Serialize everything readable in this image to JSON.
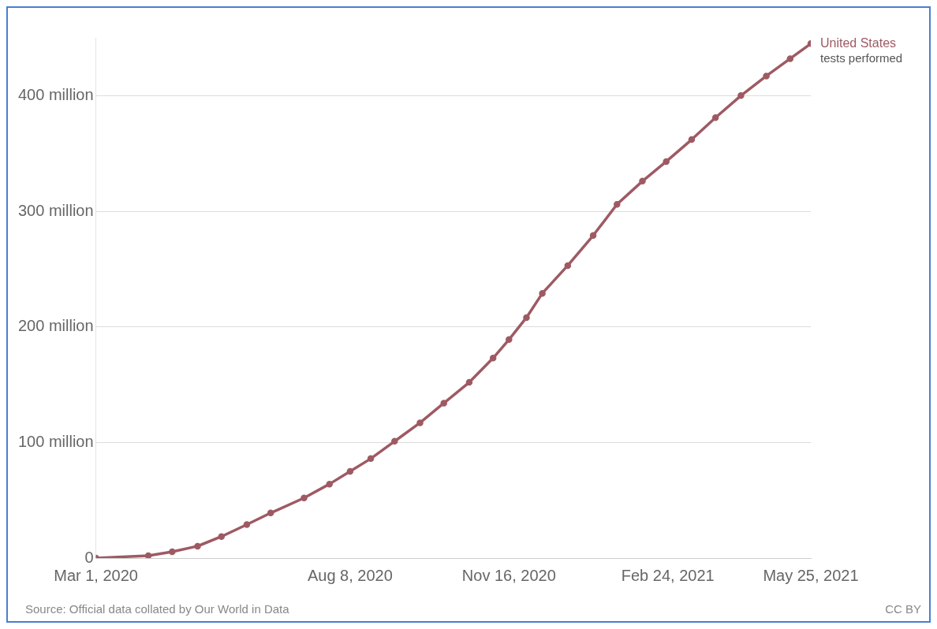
{
  "chart_data": {
    "type": "line",
    "x": [
      "2020-03-01",
      "2020-04-03",
      "2020-04-18",
      "2020-05-04",
      "2020-05-19",
      "2020-06-04",
      "2020-06-19",
      "2020-07-10",
      "2020-07-26",
      "2020-08-08",
      "2020-08-21",
      "2020-09-05",
      "2020-09-21",
      "2020-10-06",
      "2020-10-22",
      "2020-11-06",
      "2020-11-16",
      "2020-11-27",
      "2020-12-07",
      "2020-12-23",
      "2021-01-08",
      "2021-01-23",
      "2021-02-08",
      "2021-02-23",
      "2021-03-11",
      "2021-03-26",
      "2021-04-11",
      "2021-04-27",
      "2021-05-12",
      "2021-05-25"
    ],
    "series": [
      {
        "name": "United States",
        "color": "#9e5a63",
        "values": [
          0,
          2.1,
          5.5,
          10.3,
          18.6,
          29,
          39,
          52,
          64,
          75,
          86,
          101,
          117,
          134,
          152,
          173,
          189,
          208,
          229,
          253,
          279,
          306,
          326,
          343,
          362,
          381,
          400,
          417,
          432,
          445
        ]
      }
    ],
    "xlim": [
      "2020-03-01",
      "2021-05-25"
    ],
    "xticks": [
      {
        "value": "2020-03-01",
        "label": "Mar 1, 2020"
      },
      {
        "value": "2020-08-08",
        "label": "Aug 8, 2020"
      },
      {
        "value": "2020-11-16",
        "label": "Nov 16, 2020"
      },
      {
        "value": "2021-02-24",
        "label": "Feb 24, 2021"
      },
      {
        "value": "2021-05-25",
        "label": "May 25, 2021"
      }
    ],
    "ylim": [
      0,
      450
    ],
    "yticks": [
      0,
      {
        "value": 100,
        "label": "100 million"
      },
      {
        "value": 200,
        "label": "200 million"
      },
      {
        "value": 300,
        "label": "300 million"
      },
      {
        "value": 400,
        "label": "400 million"
      }
    ],
    "grid": "y",
    "marker": "circle",
    "line_style": "solid",
    "annotations": [
      {
        "text": "tests performed",
        "x": "2021-05-25",
        "y": 445
      },
      "Source: Official data collated by Our World in Data",
      "CC BY"
    ]
  }
}
